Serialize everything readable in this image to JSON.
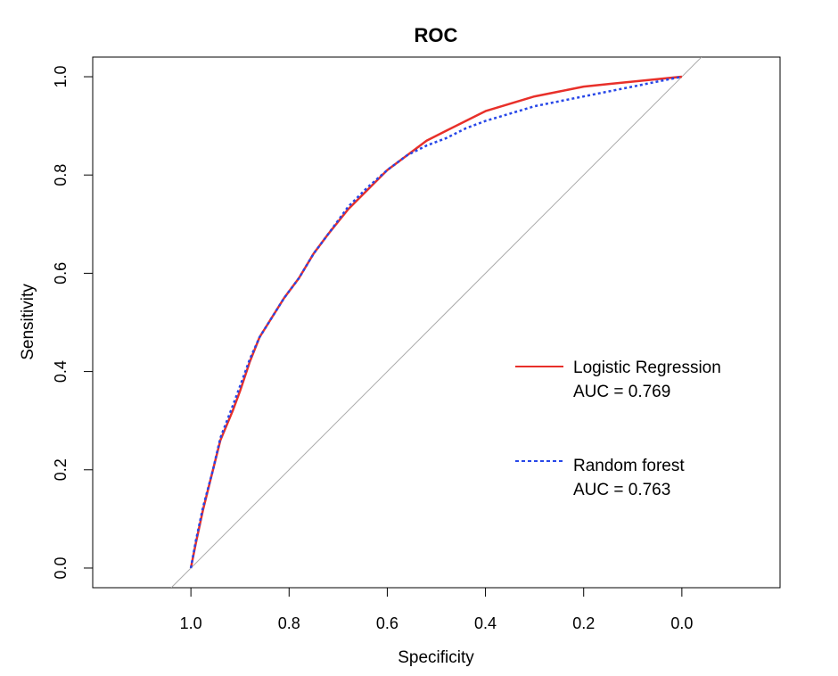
{
  "chart_data": {
    "type": "line",
    "title": "ROC",
    "xlabel": "Specificity",
    "ylabel": "Sensitivity",
    "x_reversed": true,
    "xlim": [
      1.2,
      -0.2
    ],
    "ylim": [
      -0.04,
      1.04
    ],
    "x_ticks": [
      "1.0",
      "0.8",
      "0.6",
      "0.4",
      "0.2",
      "0.0"
    ],
    "y_ticks": [
      "0.0",
      "0.2",
      "0.4",
      "0.6",
      "0.8",
      "1.0"
    ],
    "grid": false,
    "legend_position": "right",
    "reference_line": {
      "color": "#aaaaaa",
      "description": "diagonal"
    },
    "series": [
      {
        "name": "Logistic Regression",
        "auc_label": "AUC = 0.769",
        "color": "#e8302a",
        "style": "solid",
        "points": [
          [
            1.0,
            0.0
          ],
          [
            0.99,
            0.05
          ],
          [
            0.975,
            0.12
          ],
          [
            0.955,
            0.2
          ],
          [
            0.94,
            0.26
          ],
          [
            0.915,
            0.32
          ],
          [
            0.9,
            0.36
          ],
          [
            0.88,
            0.42
          ],
          [
            0.86,
            0.47
          ],
          [
            0.835,
            0.51
          ],
          [
            0.81,
            0.55
          ],
          [
            0.78,
            0.59
          ],
          [
            0.75,
            0.64
          ],
          [
            0.72,
            0.68
          ],
          [
            0.68,
            0.73
          ],
          [
            0.64,
            0.77
          ],
          [
            0.6,
            0.81
          ],
          [
            0.56,
            0.84
          ],
          [
            0.52,
            0.87
          ],
          [
            0.48,
            0.89
          ],
          [
            0.44,
            0.91
          ],
          [
            0.4,
            0.93
          ],
          [
            0.35,
            0.945
          ],
          [
            0.3,
            0.96
          ],
          [
            0.25,
            0.97
          ],
          [
            0.2,
            0.98
          ],
          [
            0.15,
            0.985
          ],
          [
            0.1,
            0.99
          ],
          [
            0.05,
            0.995
          ],
          [
            0.0,
            1.0
          ]
        ]
      },
      {
        "name": "Random forest",
        "auc_label": "AUC = 0.763",
        "color": "#2747e8",
        "style": "dashed",
        "points": [
          [
            1.0,
            0.0
          ],
          [
            0.99,
            0.055
          ],
          [
            0.975,
            0.125
          ],
          [
            0.955,
            0.2
          ],
          [
            0.94,
            0.265
          ],
          [
            0.915,
            0.33
          ],
          [
            0.9,
            0.37
          ],
          [
            0.88,
            0.425
          ],
          [
            0.86,
            0.47
          ],
          [
            0.835,
            0.51
          ],
          [
            0.81,
            0.55
          ],
          [
            0.78,
            0.59
          ],
          [
            0.75,
            0.64
          ],
          [
            0.72,
            0.68
          ],
          [
            0.68,
            0.735
          ],
          [
            0.64,
            0.775
          ],
          [
            0.6,
            0.81
          ],
          [
            0.56,
            0.84
          ],
          [
            0.52,
            0.86
          ],
          [
            0.48,
            0.875
          ],
          [
            0.44,
            0.895
          ],
          [
            0.4,
            0.91
          ],
          [
            0.35,
            0.925
          ],
          [
            0.3,
            0.94
          ],
          [
            0.25,
            0.95
          ],
          [
            0.2,
            0.96
          ],
          [
            0.15,
            0.97
          ],
          [
            0.1,
            0.98
          ],
          [
            0.05,
            0.99
          ],
          [
            0.0,
            1.0
          ]
        ]
      }
    ]
  }
}
